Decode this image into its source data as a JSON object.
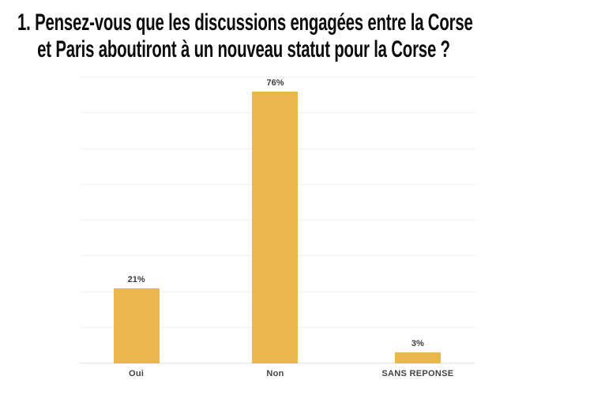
{
  "title": {
    "lines": [
      "1. Pensez-vous que les discussions engagées entre la Corse",
      "et Paris aboutiront à un nouveau statut pour la Corse ?"
    ]
  },
  "chart_data": {
    "type": "bar",
    "title": "1. Pensez-vous que les discussions engagées entre la Corse et Paris aboutiront à un nouveau statut pour la Corse ?",
    "categories": [
      "Oui",
      "Non",
      "SANS REPONSE"
    ],
    "values": [
      21,
      76,
      3
    ],
    "value_labels": [
      "21%",
      "76%",
      "3%"
    ],
    "xlabel": "",
    "ylabel": "",
    "ylim": [
      0,
      80
    ],
    "gridline_interval": 10,
    "grid": true,
    "legend": false,
    "y_tick_labels_visible": false
  },
  "palette": {
    "background": "#FFFFFF",
    "title": "#0C0C0C",
    "bar": "#EBB64B",
    "grid": "#F2F0ED",
    "baseline": "#E9E7E3",
    "value_label": "#3E3D3A",
    "category_label": "#45443F"
  }
}
